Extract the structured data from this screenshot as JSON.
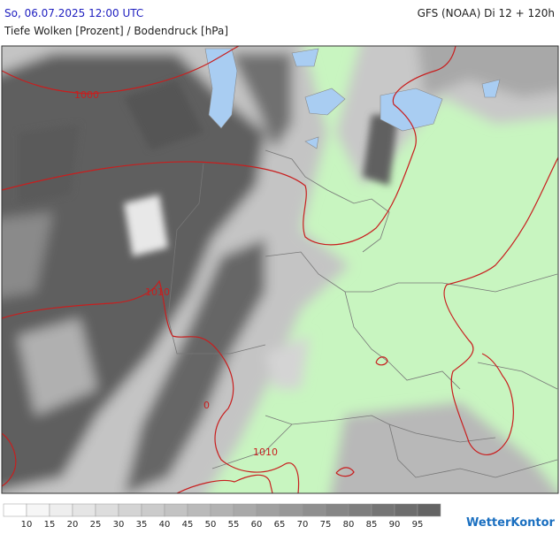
{
  "header": {
    "datetime": "So, 06.07.2025 12:00 UTC",
    "model": "GFS (NOAA) Di 12 + 120h",
    "parameter": "Tiefe Wolken [Prozent] / Bodendruck [hPa]"
  },
  "isobar_labels": [
    "1000",
    "1010",
    "0",
    "1010"
  ],
  "legend": {
    "ticks": [
      10,
      15,
      20,
      25,
      30,
      35,
      40,
      45,
      50,
      55,
      60,
      65,
      70,
      75,
      80,
      85,
      90,
      95
    ]
  },
  "logo": "WetterKontor"
}
